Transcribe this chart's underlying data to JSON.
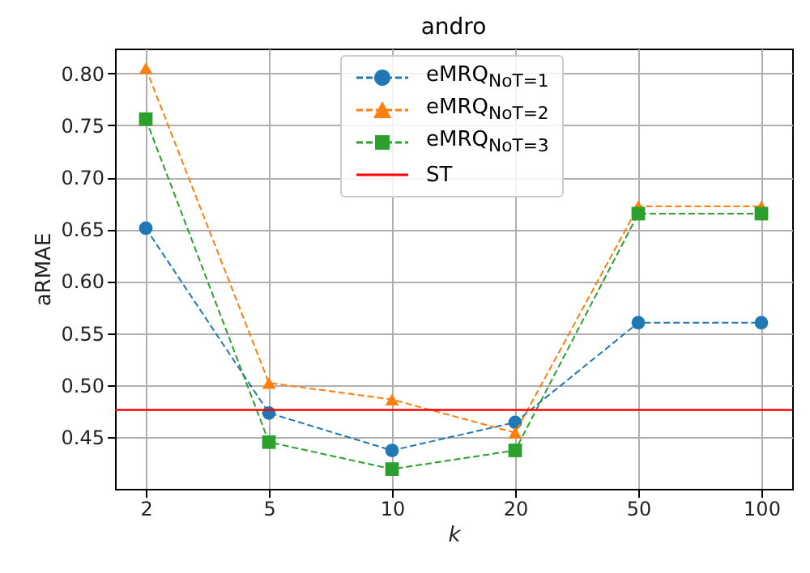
{
  "chart_data": {
    "type": "line",
    "title": "andro",
    "xlabel": "k",
    "ylabel": "aRMAE",
    "categories": [
      "2",
      "5",
      "10",
      "20",
      "50",
      "100"
    ],
    "series": [
      {
        "name": "eMRQ$_{NoT=1}$",
        "color": "#1f77b4",
        "marker": "circle",
        "line_style": "dashed",
        "values": [
          0.651,
          0.473,
          0.437,
          0.464,
          0.56,
          0.56
        ]
      },
      {
        "name": "eMRQ$_{NoT=2}$",
        "color": "#ff7f0e",
        "marker": "triangle",
        "line_style": "dashed",
        "values": [
          0.805,
          0.502,
          0.486,
          0.454,
          0.672,
          0.672
        ]
      },
      {
        "name": "eMRQ$_{NoT=3}$",
        "color": "#2ca02c",
        "marker": "square",
        "line_style": "dashed",
        "values": [
          0.756,
          0.445,
          0.419,
          0.437,
          0.665,
          0.665
        ]
      }
    ],
    "ref_lines": [
      {
        "axis": "y",
        "value": 0.476,
        "label": "ST",
        "color": "#ff0000",
        "line_style": "solid"
      }
    ],
    "ylim": [
      0.4,
      0.824
    ],
    "yticks": [
      0.45,
      {
        "value": 0.5,
        "label": "0.50"
      },
      0.55,
      {
        "value": 0.6,
        "label": "0.60"
      },
      0.65,
      {
        "value": 0.7,
        "label": "0.70"
      },
      0.75,
      {
        "value": 0.8,
        "label": "0.80"
      }
    ],
    "grid": true,
    "legend": "top"
  }
}
